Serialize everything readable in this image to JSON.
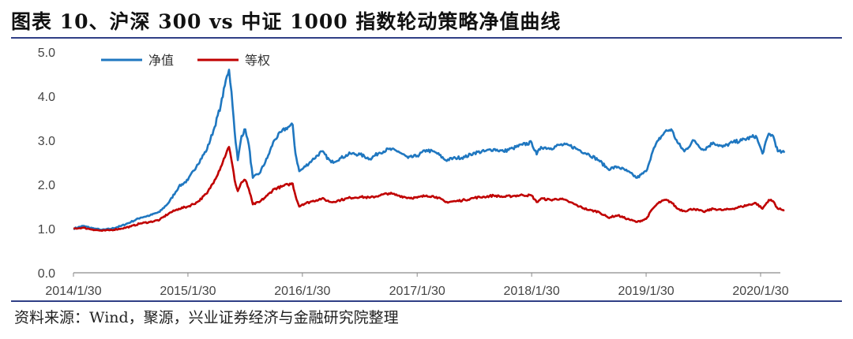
{
  "figure": {
    "title": "图表 10、沪深 300 vs  中证 1000 指数轮动策略净值曲线",
    "source": "资料来源：Wind，聚源，兴业证券经济与金融研究院整理"
  },
  "chart_data": {
    "type": "line",
    "ylim": [
      0,
      5
    ],
    "yticks": [
      "0.0",
      "1.0",
      "2.0",
      "3.0",
      "4.0",
      "5.0"
    ],
    "xticks": [
      "2014/1/30",
      "2015/1/30",
      "2016/1/30",
      "2017/1/30",
      "2018/1/30",
      "2019/1/30",
      "2020/1/30"
    ],
    "grid": false,
    "legend": "top-left",
    "series": [
      {
        "name": "净值",
        "color": "#1f77c0",
        "points": [
          [
            "2014/1/30",
            1.0
          ],
          [
            "2014/3/1",
            1.06
          ],
          [
            "2014/4/1",
            1.01
          ],
          [
            "2014/5/1",
            0.97
          ],
          [
            "2014/6/1",
            1.0
          ],
          [
            "2014/7/1",
            1.06
          ],
          [
            "2014/8/1",
            1.15
          ],
          [
            "2014/9/1",
            1.25
          ],
          [
            "2014/10/1",
            1.3
          ],
          [
            "2014/11/1",
            1.38
          ],
          [
            "2014/12/1",
            1.6
          ],
          [
            "2015/1/1",
            1.95
          ],
          [
            "2015/1/30",
            2.1
          ],
          [
            "2015/3/1",
            2.45
          ],
          [
            "2015/4/1",
            2.8
          ],
          [
            "2015/4/25",
            3.3
          ],
          [
            "2015/5/15",
            3.8
          ],
          [
            "2015/6/3",
            4.45
          ],
          [
            "2015/6/10",
            4.6
          ],
          [
            "2015/6/18",
            4.1
          ],
          [
            "2015/6/28",
            3.2
          ],
          [
            "2015/7/8",
            2.55
          ],
          [
            "2015/7/20",
            3.1
          ],
          [
            "2015/8/1",
            3.25
          ],
          [
            "2015/8/12",
            2.9
          ],
          [
            "2015/8/25",
            2.15
          ],
          [
            "2015/9/15",
            2.25
          ],
          [
            "2015/10/10",
            2.6
          ],
          [
            "2015/11/1",
            3.0
          ],
          [
            "2015/11/25",
            3.2
          ],
          [
            "2015/12/15",
            3.3
          ],
          [
            "2015/12/30",
            3.35
          ],
          [
            "2016/1/8",
            2.7
          ],
          [
            "2016/1/20",
            2.3
          ],
          [
            "2016/1/30",
            2.35
          ],
          [
            "2016/3/1",
            2.55
          ],
          [
            "2016/4/1",
            2.75
          ],
          [
            "2016/5/1",
            2.5
          ],
          [
            "2016/6/1",
            2.6
          ],
          [
            "2016/7/1",
            2.7
          ],
          [
            "2016/8/1",
            2.68
          ],
          [
            "2016/9/1",
            2.58
          ],
          [
            "2016/10/1",
            2.72
          ],
          [
            "2016/11/1",
            2.8
          ],
          [
            "2016/12/1",
            2.75
          ],
          [
            "2017/1/1",
            2.6
          ],
          [
            "2017/1/30",
            2.65
          ],
          [
            "2017/3/1",
            2.78
          ],
          [
            "2017/4/1",
            2.72
          ],
          [
            "2017/5/1",
            2.55
          ],
          [
            "2017/6/1",
            2.6
          ],
          [
            "2017/7/1",
            2.62
          ],
          [
            "2017/8/1",
            2.72
          ],
          [
            "2017/9/1",
            2.75
          ],
          [
            "2017/10/1",
            2.8
          ],
          [
            "2017/11/1",
            2.75
          ],
          [
            "2017/12/1",
            2.82
          ],
          [
            "2018/1/1",
            2.9
          ],
          [
            "2018/1/30",
            2.95
          ],
          [
            "2018/2/15",
            2.68
          ],
          [
            "2018/3/1",
            2.85
          ],
          [
            "2018/4/1",
            2.82
          ],
          [
            "2018/5/1",
            2.9
          ],
          [
            "2018/6/1",
            2.88
          ],
          [
            "2018/7/1",
            2.78
          ],
          [
            "2018/8/1",
            2.68
          ],
          [
            "2018/9/1",
            2.55
          ],
          [
            "2018/10/1",
            2.35
          ],
          [
            "2018/11/1",
            2.4
          ],
          [
            "2018/12/1",
            2.3
          ],
          [
            "2019/1/1",
            2.15
          ],
          [
            "2019/1/30",
            2.3
          ],
          [
            "2019/2/20",
            2.75
          ],
          [
            "2019/3/10",
            3.0
          ],
          [
            "2019/4/1",
            3.2
          ],
          [
            "2019/4/20",
            3.25
          ],
          [
            "2019/5/10",
            2.95
          ],
          [
            "2019/6/1",
            2.75
          ],
          [
            "2019/7/1",
            3.0
          ],
          [
            "2019/8/1",
            2.78
          ],
          [
            "2019/9/1",
            2.95
          ],
          [
            "2019/10/1",
            2.85
          ],
          [
            "2019/11/1",
            2.95
          ],
          [
            "2019/12/1",
            3.0
          ],
          [
            "2020/1/15",
            3.1
          ],
          [
            "2020/2/5",
            2.7
          ],
          [
            "2020/2/25",
            3.15
          ],
          [
            "2020/3/10",
            3.1
          ],
          [
            "2020/3/25",
            2.75
          ],
          [
            "2020/4/15",
            2.72
          ]
        ]
      },
      {
        "name": "等权",
        "color": "#c00000",
        "points": [
          [
            "2014/1/30",
            1.0
          ],
          [
            "2014/3/1",
            1.02
          ],
          [
            "2014/4/1",
            0.98
          ],
          [
            "2014/5/1",
            0.95
          ],
          [
            "2014/6/1",
            0.97
          ],
          [
            "2014/7/1",
            1.0
          ],
          [
            "2014/8/1",
            1.05
          ],
          [
            "2014/9/1",
            1.12
          ],
          [
            "2014/10/1",
            1.15
          ],
          [
            "2014/11/1",
            1.2
          ],
          [
            "2014/12/1",
            1.35
          ],
          [
            "2015/1/1",
            1.45
          ],
          [
            "2015/1/30",
            1.5
          ],
          [
            "2015/3/1",
            1.6
          ],
          [
            "2015/4/1",
            1.8
          ],
          [
            "2015/4/25",
            2.1
          ],
          [
            "2015/5/15",
            2.4
          ],
          [
            "2015/6/3",
            2.75
          ],
          [
            "2015/6/10",
            2.85
          ],
          [
            "2015/6/18",
            2.55
          ],
          [
            "2015/6/28",
            2.1
          ],
          [
            "2015/7/8",
            1.85
          ],
          [
            "2015/7/20",
            2.05
          ],
          [
            "2015/8/1",
            2.1
          ],
          [
            "2015/8/12",
            1.9
          ],
          [
            "2015/8/25",
            1.55
          ],
          [
            "2015/9/15",
            1.6
          ],
          [
            "2015/10/10",
            1.75
          ],
          [
            "2015/11/1",
            1.9
          ],
          [
            "2015/11/25",
            1.95
          ],
          [
            "2015/12/15",
            2.0
          ],
          [
            "2015/12/30",
            2.02
          ],
          [
            "2016/1/8",
            1.75
          ],
          [
            "2016/1/20",
            1.5
          ],
          [
            "2016/1/30",
            1.55
          ],
          [
            "2016/3/1",
            1.62
          ],
          [
            "2016/4/1",
            1.68
          ],
          [
            "2016/5/1",
            1.6
          ],
          [
            "2016/6/1",
            1.65
          ],
          [
            "2016/7/1",
            1.7
          ],
          [
            "2016/8/1",
            1.72
          ],
          [
            "2016/9/1",
            1.7
          ],
          [
            "2016/10/1",
            1.75
          ],
          [
            "2016/11/1",
            1.8
          ],
          [
            "2016/12/1",
            1.75
          ],
          [
            "2017/1/1",
            1.7
          ],
          [
            "2017/1/30",
            1.7
          ],
          [
            "2017/3/1",
            1.75
          ],
          [
            "2017/4/1",
            1.72
          ],
          [
            "2017/5/1",
            1.6
          ],
          [
            "2017/6/1",
            1.62
          ],
          [
            "2017/7/1",
            1.65
          ],
          [
            "2017/8/1",
            1.7
          ],
          [
            "2017/9/1",
            1.72
          ],
          [
            "2017/10/1",
            1.75
          ],
          [
            "2017/11/1",
            1.72
          ],
          [
            "2017/12/1",
            1.74
          ],
          [
            "2018/1/1",
            1.76
          ],
          [
            "2018/1/30",
            1.75
          ],
          [
            "2018/2/15",
            1.6
          ],
          [
            "2018/3/1",
            1.68
          ],
          [
            "2018/4/1",
            1.65
          ],
          [
            "2018/5/1",
            1.68
          ],
          [
            "2018/6/1",
            1.6
          ],
          [
            "2018/7/1",
            1.5
          ],
          [
            "2018/8/1",
            1.42
          ],
          [
            "2018/9/1",
            1.38
          ],
          [
            "2018/10/1",
            1.25
          ],
          [
            "2018/11/1",
            1.3
          ],
          [
            "2018/12/1",
            1.22
          ],
          [
            "2019/1/1",
            1.15
          ],
          [
            "2019/1/30",
            1.22
          ],
          [
            "2019/2/20",
            1.45
          ],
          [
            "2019/3/10",
            1.58
          ],
          [
            "2019/4/1",
            1.65
          ],
          [
            "2019/4/20",
            1.6
          ],
          [
            "2019/5/10",
            1.45
          ],
          [
            "2019/6/1",
            1.4
          ],
          [
            "2019/7/1",
            1.45
          ],
          [
            "2019/8/1",
            1.38
          ],
          [
            "2019/9/1",
            1.45
          ],
          [
            "2019/10/1",
            1.42
          ],
          [
            "2019/11/1",
            1.45
          ],
          [
            "2019/12/1",
            1.5
          ],
          [
            "2020/1/15",
            1.58
          ],
          [
            "2020/2/5",
            1.45
          ],
          [
            "2020/2/25",
            1.65
          ],
          [
            "2020/3/10",
            1.62
          ],
          [
            "2020/3/25",
            1.45
          ],
          [
            "2020/4/15",
            1.42
          ]
        ]
      }
    ]
  }
}
